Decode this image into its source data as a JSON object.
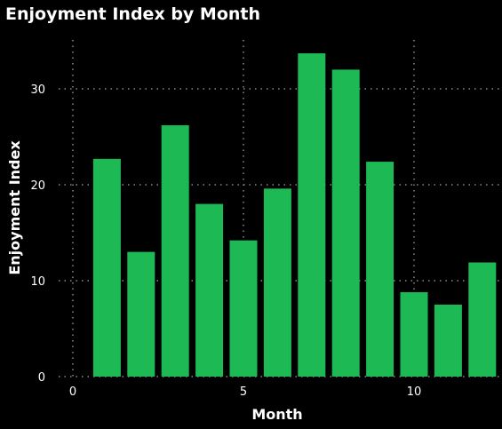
{
  "chart_data": {
    "type": "bar",
    "title": "Enjoyment Index by Month",
    "xlabel": "Month",
    "ylabel": "Enjoyment Index",
    "x": [
      1,
      2,
      3,
      4,
      5,
      6,
      7,
      8,
      9,
      10,
      11,
      12
    ],
    "values": [
      22.7,
      13.0,
      26.2,
      18.0,
      14.2,
      19.6,
      33.7,
      32.0,
      22.4,
      8.8,
      7.5,
      11.9
    ],
    "xlim": [
      0,
      12.5
    ],
    "ylim": [
      0,
      35
    ],
    "xticks": [
      0,
      5,
      10
    ],
    "xtick_labels": [
      "0",
      "5",
      "10"
    ],
    "yticks": [
      0,
      10,
      20,
      30
    ],
    "ytick_labels": [
      "0",
      "10",
      "20",
      "30"
    ],
    "grid": true,
    "colors": {
      "background": "#000000",
      "bar": "#1db954",
      "grid": "#8a8a8a",
      "text": "#ffffff"
    }
  }
}
